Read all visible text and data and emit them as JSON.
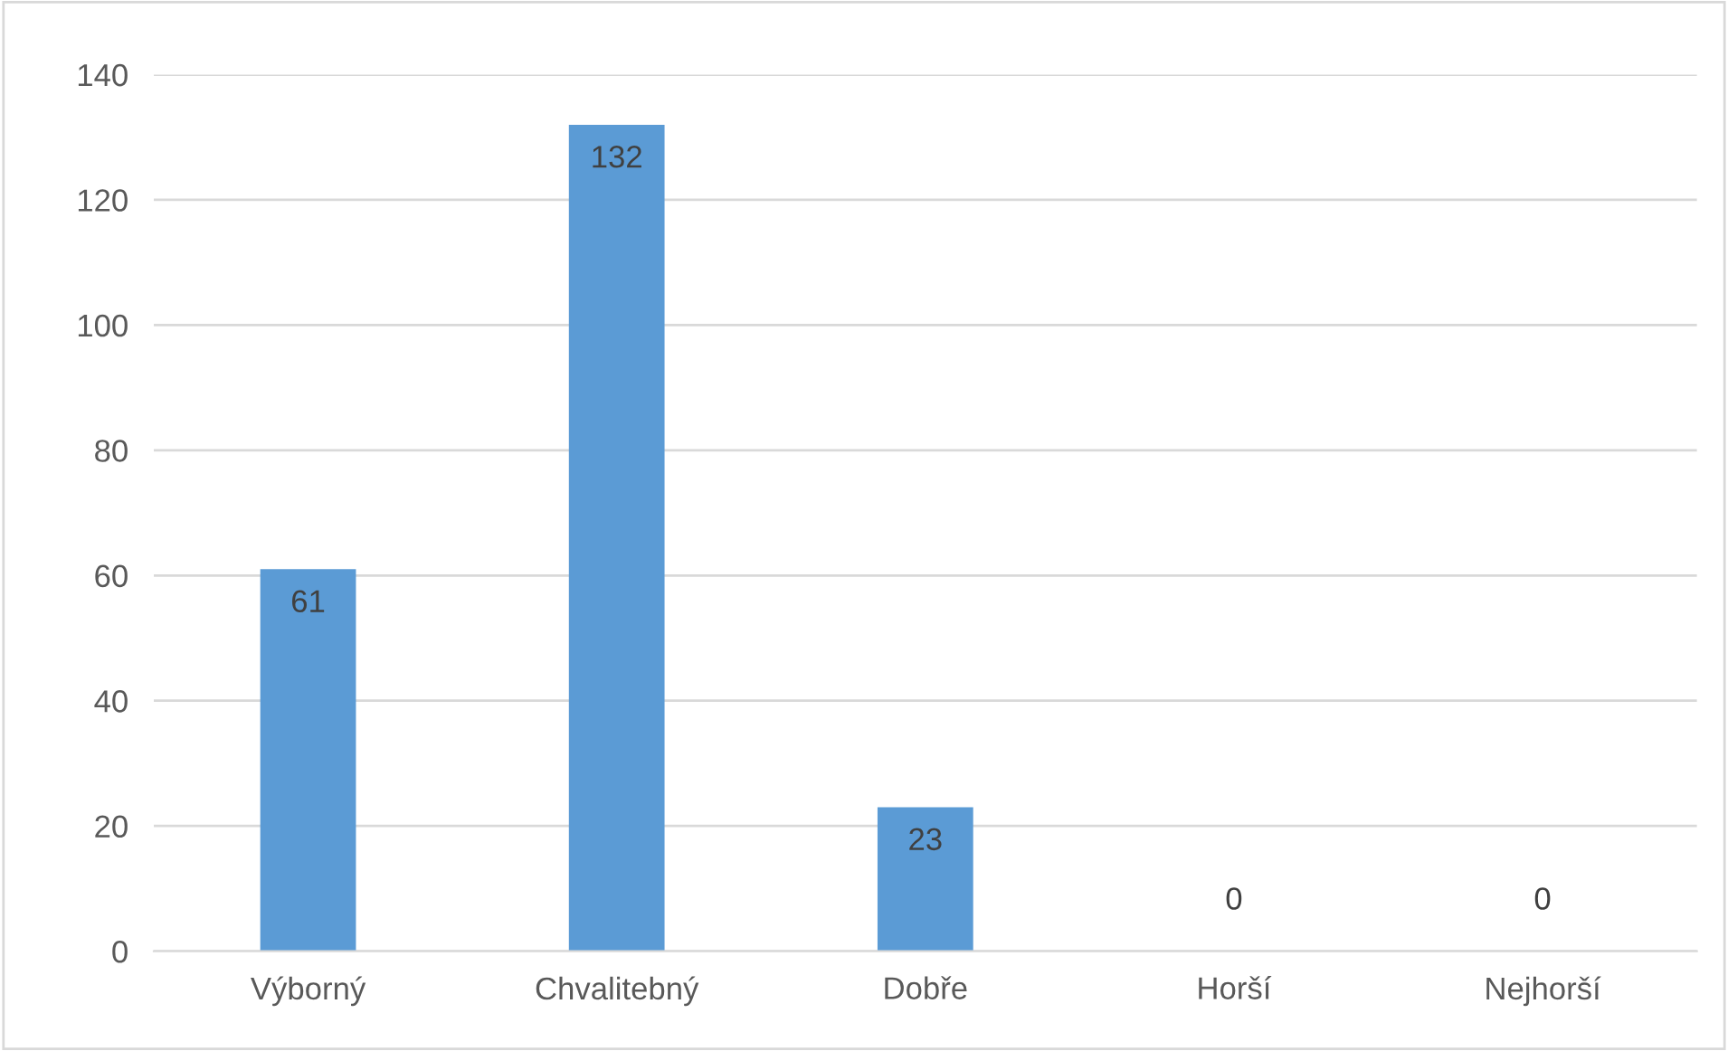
{
  "chart_data": {
    "type": "bar",
    "categories": [
      "Výborný",
      "Chvalitebný",
      "Dobře",
      "Horší",
      "Nejhorší"
    ],
    "values": [
      61,
      132,
      23,
      0,
      0
    ],
    "color": "#5b9bd5",
    "ylim": [
      0,
      140
    ],
    "yticks": [
      0,
      20,
      40,
      60,
      80,
      100,
      120,
      140
    ],
    "grid": "y",
    "data_labels": true
  }
}
